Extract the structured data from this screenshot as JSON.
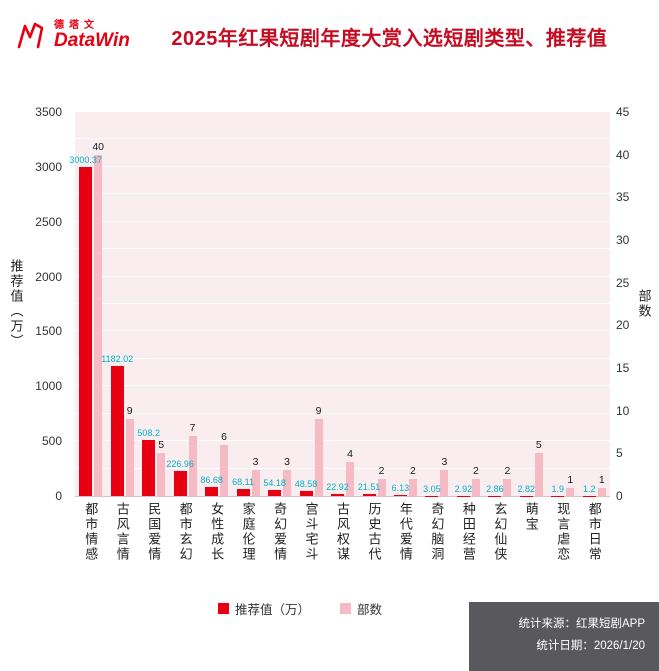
{
  "header": {
    "brand_cn": "德塔文",
    "brand_en": "DataWin",
    "brand_color": "#e60012",
    "title": "2025年红果短剧年度大赏入选短剧类型、推荐值",
    "title_color": "#c30d23"
  },
  "chart_data": {
    "type": "bar",
    "title": "2025年红果短剧年度大赏入选短剧类型、推荐值",
    "categories": [
      "都市情感",
      "古风言情",
      "民国爱情",
      "都市玄幻",
      "女性成长",
      "家庭伦理",
      "奇幻爱情",
      "宫斗宅斗",
      "古风权谋",
      "历史古代",
      "年代爱情",
      "奇幻脑洞",
      "种田经营",
      "玄幻仙侠",
      "萌宝",
      "现言虐恋",
      "都市日常"
    ],
    "series": [
      {
        "name": "推荐值（万）",
        "axis": "left",
        "color": "#e60012",
        "values": [
          3000.37,
          1182.02,
          508.2,
          226.96,
          86.68,
          68.11,
          54.18,
          48.58,
          22.92,
          21.51,
          6.13,
          3.05,
          2.92,
          2.86,
          2.82,
          1.9,
          1.2
        ]
      },
      {
        "name": "部数",
        "axis": "right",
        "color": "#f5bac3",
        "values": [
          40,
          9,
          5,
          7,
          6,
          3,
          3,
          9,
          4,
          2,
          2,
          3,
          2,
          2,
          5,
          1,
          1
        ]
      }
    ],
    "left_axis": {
      "label": "推荐值（万）",
      "min": 0,
      "max": 3500,
      "tick_step": 500,
      "grid_step": 250,
      "ticks": [
        0,
        500,
        1000,
        1500,
        2000,
        2500,
        3000,
        3500
      ]
    },
    "right_axis": {
      "label": "部数",
      "min": 0,
      "max": 45,
      "tick_step": 5,
      "ticks": [
        0,
        5,
        10,
        15,
        20,
        25,
        30,
        35,
        40,
        45
      ]
    },
    "value_label_color": "#00b3c6",
    "grid": true,
    "legend_position": "bottom",
    "xlabel": "",
    "ylabel": "推荐值（万）",
    "y2label": "部数",
    "ylim": [
      0,
      3500
    ],
    "y2lim": [
      0,
      45
    ]
  },
  "legend": [
    {
      "label": "推荐值（万）",
      "color": "#e60012"
    },
    {
      "label": "部数",
      "color": "#f5bac3"
    }
  ],
  "footer": {
    "source": "统计来源：红果短剧APP",
    "date": "统计日期：2026/1/20"
  }
}
